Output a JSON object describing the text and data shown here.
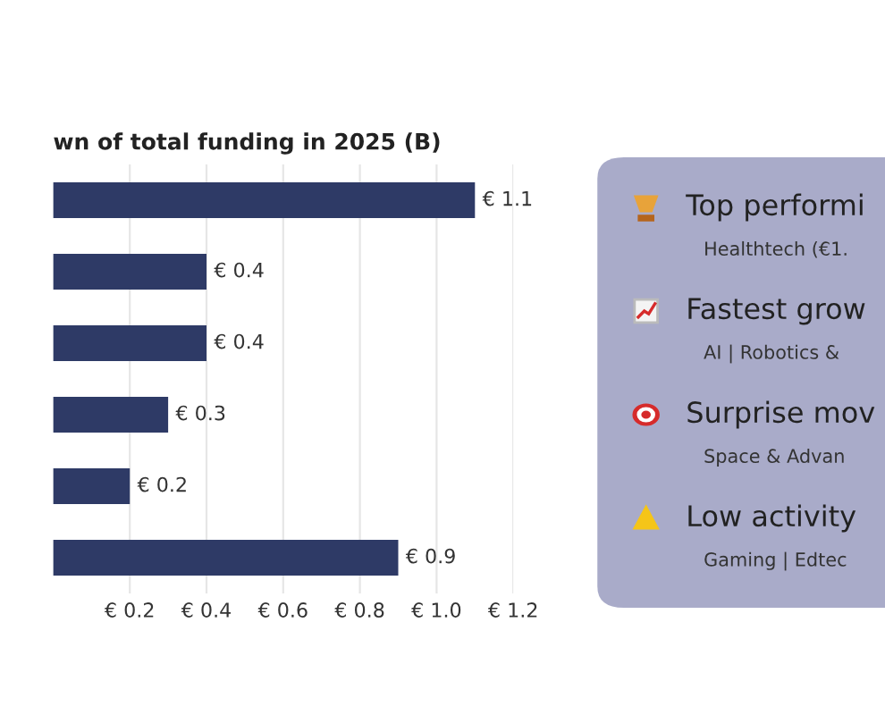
{
  "chart_data": [
    {
      "type": "bar",
      "orientation": "horizontal",
      "title": "wn of total funding in 2025 (B)",
      "categories": [
        null,
        null,
        null,
        null,
        null,
        null
      ],
      "values": [
        1.1,
        0.4,
        0.4,
        0.3,
        0.2,
        0.9
      ],
      "value_labels": [
        "€ 1.1",
        "€ 0.4",
        "€ 0.4",
        "€ 0.3",
        "€ 0.2",
        "€ 0.9"
      ],
      "color": "#2e3a66",
      "xlim": [
        0,
        1.2
      ],
      "xticks": [
        {
          "value": 0.2,
          "label": "€ 0.2"
        },
        {
          "value": 0.4,
          "label": "€ 0.4"
        },
        {
          "value": 0.6,
          "label": "€ 0.6"
        },
        {
          "value": 0.8,
          "label": "€ 0.8"
        },
        {
          "value": 1.0,
          "label": "€ 1.0"
        },
        {
          "value": 1.2,
          "label": "€ 1.2"
        }
      ],
      "grid": "x"
    },
    {
      "type": "other",
      "annotations": [
        "Top performi",
        "Healthtech (€1.",
        "Fastest grow",
        "AI | Robotics &",
        "Surprise mov",
        "Space & Advan",
        "Low activity",
        "Gaming | Edtec"
      ]
    }
  ]
}
